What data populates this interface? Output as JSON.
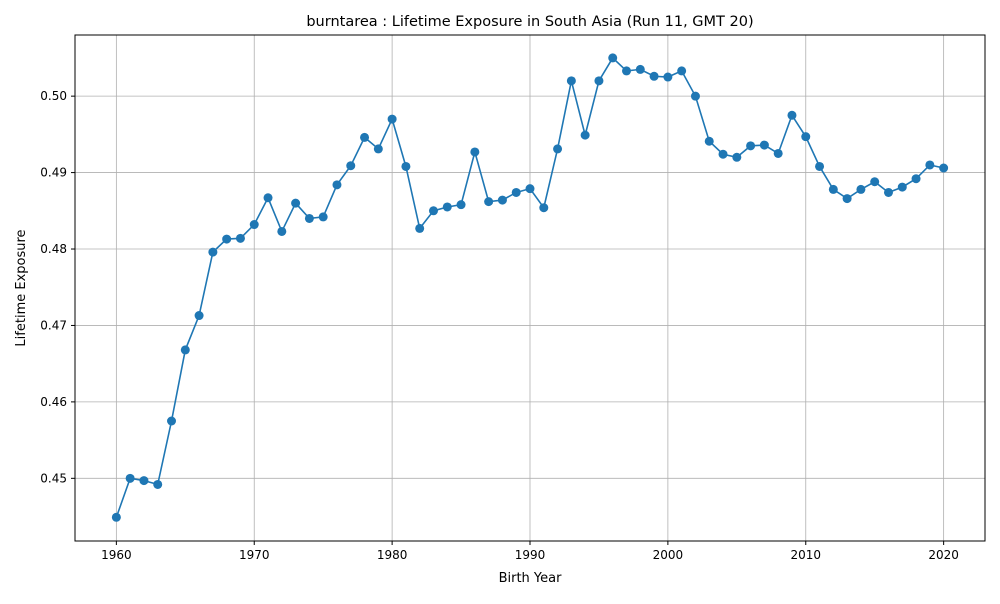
{
  "chart_data": {
    "type": "line",
    "title": "burntarea : Lifetime Exposure in South Asia (Run 11, GMT 20)",
    "xlabel": "Birth Year",
    "ylabel": "Lifetime Exposure",
    "xlim": [
      1957,
      2023
    ],
    "ylim": [
      0.4418,
      0.508
    ],
    "xticks": [
      1960,
      1970,
      1980,
      1990,
      2000,
      2010,
      2020
    ],
    "yticks": [
      0.45,
      0.46,
      0.47,
      0.48,
      0.49,
      0.5
    ],
    "ytick_labels": [
      "0.45",
      "0.46",
      "0.47",
      "0.48",
      "0.49",
      "0.50"
    ],
    "grid": true,
    "line_color": "#1f77b4",
    "marker": "circle",
    "x": [
      1960,
      1961,
      1962,
      1963,
      1964,
      1965,
      1966,
      1967,
      1968,
      1969,
      1970,
      1971,
      1972,
      1973,
      1974,
      1975,
      1976,
      1977,
      1978,
      1979,
      1980,
      1981,
      1982,
      1983,
      1984,
      1985,
      1986,
      1987,
      1988,
      1989,
      1990,
      1991,
      1992,
      1993,
      1994,
      1995,
      1996,
      1997,
      1998,
      1999,
      2000,
      2001,
      2002,
      2003,
      2004,
      2005,
      2006,
      2007,
      2008,
      2009,
      2010,
      2011,
      2012,
      2013,
      2014,
      2015,
      2016,
      2017,
      2018,
      2019,
      2020
    ],
    "y": [
      0.4449,
      0.45,
      0.4497,
      0.4492,
      0.4575,
      0.4668,
      0.4713,
      0.4796,
      0.4813,
      0.4814,
      0.4832,
      0.4867,
      0.4823,
      0.486,
      0.484,
      0.4842,
      0.4884,
      0.4909,
      0.4946,
      0.4931,
      0.497,
      0.4908,
      0.4827,
      0.485,
      0.4855,
      0.4858,
      0.4927,
      0.4862,
      0.4864,
      0.4874,
      0.4879,
      0.4854,
      0.4931,
      0.502,
      0.4949,
      0.502,
      0.505,
      0.5033,
      0.5035,
      0.5026,
      0.5025,
      0.5033,
      0.5,
      0.4941,
      0.4924,
      0.492,
      0.4935,
      0.4936,
      0.4925,
      0.4975,
      0.4947,
      0.4908,
      0.4878,
      0.4866,
      0.4878,
      0.4888,
      0.4874,
      0.4881,
      0.4892,
      0.491,
      0.4906
    ]
  }
}
